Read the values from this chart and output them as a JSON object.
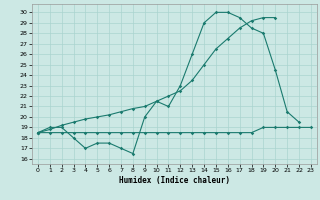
{
  "title": "",
  "xlabel": "Humidex (Indice chaleur)",
  "bg_color": "#cce8e4",
  "line_color": "#1a7a6e",
  "grid_color": "#aad4cf",
  "xlim": [
    -0.5,
    23.5
  ],
  "ylim": [
    15.5,
    30.8
  ],
  "yticks": [
    16,
    17,
    18,
    19,
    20,
    21,
    22,
    23,
    24,
    25,
    26,
    27,
    28,
    29,
    30
  ],
  "xticks": [
    0,
    1,
    2,
    3,
    4,
    5,
    6,
    7,
    8,
    9,
    10,
    11,
    12,
    13,
    14,
    15,
    16,
    17,
    18,
    19,
    20,
    21,
    22,
    23
  ],
  "line1_x": [
    0,
    1,
    2,
    3,
    4,
    5,
    6,
    7,
    8,
    9,
    10,
    11,
    12,
    13,
    14,
    15,
    16,
    17,
    18,
    19,
    20,
    21,
    22
  ],
  "line1_y": [
    18.5,
    19.0,
    19.0,
    18.0,
    17.0,
    17.5,
    17.5,
    17.0,
    16.5,
    20.0,
    21.5,
    21.0,
    23.0,
    26.0,
    29.0,
    30.0,
    30.0,
    29.5,
    28.5,
    28.0,
    24.5,
    20.5,
    19.5
  ],
  "line2_x": [
    0,
    1,
    2,
    3,
    4,
    5,
    6,
    7,
    8,
    9,
    10,
    11,
    12,
    13,
    14,
    15,
    16,
    17,
    18,
    19,
    20
  ],
  "line2_y": [
    18.5,
    18.8,
    19.2,
    19.5,
    19.8,
    20.0,
    20.2,
    20.5,
    20.8,
    21.0,
    21.5,
    22.0,
    22.5,
    23.5,
    25.0,
    26.5,
    27.5,
    28.5,
    29.2,
    29.5,
    29.5
  ],
  "line3_x": [
    0,
    1,
    2,
    3,
    4,
    5,
    6,
    7,
    8,
    9,
    10,
    11,
    12,
    13,
    14,
    15,
    16,
    17,
    18,
    19,
    20,
    21,
    22,
    23
  ],
  "line3_y": [
    18.5,
    18.5,
    18.5,
    18.5,
    18.5,
    18.5,
    18.5,
    18.5,
    18.5,
    18.5,
    18.5,
    18.5,
    18.5,
    18.5,
    18.5,
    18.5,
    18.5,
    18.5,
    18.5,
    19.0,
    19.0,
    19.0,
    19.0,
    19.0
  ]
}
